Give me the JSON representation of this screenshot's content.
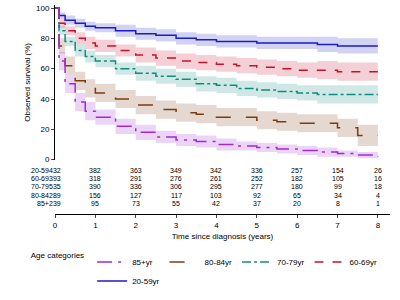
{
  "chart_data": {
    "type": "line",
    "x_label": "Time since diagnosis (years)",
    "y_label": "Observed survival (%)",
    "legend_title": "Age categories",
    "legend": "bottom",
    "grid": false,
    "xlim": [
      0,
      8.3
    ],
    "xticks": [
      0,
      1,
      2,
      3,
      4,
      5,
      6,
      7,
      8
    ],
    "ylim": [
      0,
      102
    ],
    "yticks": [
      0,
      20,
      40,
      60,
      80,
      100
    ],
    "x": [
      0,
      0.1,
      0.25,
      0.5,
      0.75,
      1,
      1.5,
      2,
      2.5,
      3,
      3.5,
      4,
      4.5,
      5,
      5.5,
      6,
      6.5,
      7,
      7.5,
      8
    ],
    "series": [
      {
        "name": "20-59yr",
        "color": "#1c1cc4",
        "line_style": "solid",
        "values": [
          100,
          95,
          92,
          90,
          88,
          87,
          85,
          83,
          82,
          80,
          79,
          78,
          78,
          77,
          77,
          77,
          76,
          75,
          75,
          75
        ],
        "lower": [
          100,
          93,
          89,
          87,
          85,
          84,
          81,
          79,
          78,
          76,
          75,
          74,
          74,
          73,
          73,
          73,
          71,
          70,
          70,
          69
        ],
        "upper": [
          100,
          97,
          95,
          93,
          91,
          90,
          89,
          87,
          86,
          84,
          83,
          82,
          82,
          81,
          81,
          81,
          81,
          80,
          80,
          81
        ]
      },
      {
        "name": "60-69yr",
        "color": "#c8102e",
        "line_style": "dash",
        "values": [
          100,
          90,
          85,
          80,
          77,
          75,
          72,
          69,
          67,
          65,
          64,
          63,
          62,
          61,
          60,
          59,
          59,
          58,
          58,
          58
        ],
        "lower": [
          100,
          87,
          82,
          76,
          73,
          71,
          68,
          64,
          62,
          60,
          59,
          58,
          57,
          56,
          55,
          54,
          53,
          52,
          52,
          52
        ],
        "upper": [
          100,
          93,
          88,
          84,
          81,
          79,
          76,
          74,
          72,
          70,
          69,
          68,
          67,
          66,
          65,
          64,
          65,
          64,
          64,
          64
        ]
      },
      {
        "name": "70-79yr",
        "color": "#138a7e",
        "line_style": "dashdot",
        "values": [
          100,
          85,
          78,
          72,
          68,
          65,
          60,
          57,
          55,
          53,
          50,
          49,
          47,
          46,
          45,
          44,
          43,
          43,
          43,
          43
        ],
        "lower": [
          100,
          82,
          75,
          68,
          64,
          61,
          56,
          52,
          50,
          48,
          45,
          44,
          42,
          41,
          40,
          39,
          37,
          37,
          37,
          37
        ],
        "upper": [
          100,
          88,
          81,
          76,
          72,
          69,
          64,
          62,
          60,
          58,
          55,
          54,
          52,
          51,
          50,
          49,
          49,
          49,
          49,
          49
        ]
      },
      {
        "name": "80-84yr",
        "color": "#7a3d12",
        "line_style": "longdash",
        "values": [
          100,
          75,
          62,
          52,
          47,
          44,
          40,
          36,
          33,
          31,
          30,
          28,
          28,
          26,
          25,
          24,
          24,
          21,
          16,
          16
        ],
        "lower": [
          100,
          70,
          56,
          46,
          41,
          38,
          34,
          30,
          27,
          25,
          24,
          22,
          22,
          20,
          19,
          18,
          18,
          15,
          9,
          9
        ],
        "upper": [
          100,
          80,
          68,
          58,
          53,
          50,
          46,
          42,
          39,
          37,
          36,
          34,
          34,
          32,
          31,
          30,
          30,
          27,
          23,
          23
        ]
      },
      {
        "name": "85+yr",
        "color": "#a12ad6",
        "line_style": "longdashdot",
        "values": [
          100,
          65,
          50,
          38,
          32,
          28,
          22,
          18,
          15,
          13,
          12,
          10,
          9,
          8,
          7,
          6,
          5,
          4,
          3,
          2
        ],
        "lower": [
          100,
          59,
          44,
          32,
          26,
          23,
          17,
          13,
          11,
          9,
          8,
          6,
          6,
          5,
          4,
          3,
          2,
          2,
          1,
          0
        ],
        "upper": [
          100,
          71,
          56,
          44,
          38,
          33,
          27,
          23,
          19,
          17,
          16,
          14,
          12,
          11,
          10,
          9,
          8,
          6,
          5,
          4
        ]
      }
    ],
    "risk_table": {
      "times": [
        0,
        1,
        2,
        3,
        4,
        5,
        6,
        7,
        8
      ],
      "rows": [
        {
          "label": "20-59",
          "values": [
            432,
            382,
            363,
            349,
            342,
            336,
            257,
            154,
            26
          ]
        },
        {
          "label": "60-69",
          "values": [
            393,
            318,
            291,
            276,
            261,
            252,
            182,
            105,
            16
          ]
        },
        {
          "label": "70-79",
          "values": [
            535,
            390,
            336,
            306,
            295,
            277,
            180,
            99,
            18
          ]
        },
        {
          "label": "80-84",
          "values": [
            289,
            156,
            127,
            117,
            103,
            92,
            65,
            34,
            4
          ]
        },
        {
          "label": "85+",
          "values": [
            239,
            95,
            73,
            55,
            42,
            37,
            20,
            8,
            1
          ]
        }
      ]
    }
  }
}
